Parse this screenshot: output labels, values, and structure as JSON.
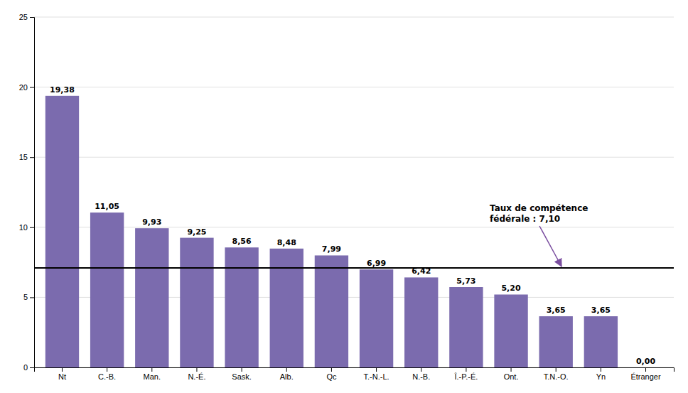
{
  "chart_data": {
    "type": "bar",
    "categories": [
      "Nt",
      "C.-B.",
      "Man.",
      "N.-É.",
      "Sask.",
      "Alb.",
      "Qc",
      "T.-N.-L.",
      "N.-B.",
      "Î.-P.-É.",
      "Ont.",
      "T.N.-O.",
      "Yn",
      "Étranger"
    ],
    "values": [
      19.38,
      11.05,
      9.93,
      9.25,
      8.56,
      8.48,
      7.99,
      6.99,
      6.42,
      5.73,
      5.2,
      3.65,
      3.65,
      0.0
    ],
    "value_labels": [
      "19,38",
      "11,05",
      "9,93",
      "9,25",
      "8,56",
      "8,48",
      "7,99",
      "6,99",
      "6,42",
      "5,73",
      "5,20",
      "3,65",
      "3,65",
      "0,00"
    ],
    "data_labels": true,
    "color": "#7B6BAE",
    "reference_line": 7.1,
    "annotations": [
      "Taux de compétence",
      "fédérale : 7,10"
    ],
    "ylim": [
      0,
      25
    ],
    "yticks": [
      0,
      5,
      10,
      15,
      20,
      25
    ],
    "grid": true
  }
}
